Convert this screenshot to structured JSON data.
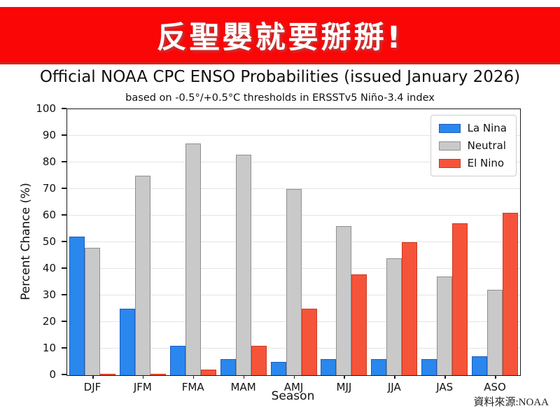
{
  "banner": {
    "text": "反聖嬰就要掰掰!",
    "bg_color": "#fb0606",
    "border_color": "#c92a1d",
    "text_color": "#ffffff"
  },
  "chart_data": {
    "type": "bar",
    "title": "Official NOAA CPC ENSO Probabilities (issued January 2026)",
    "subtitle": "based on -0.5°/+0.5°C thresholds in ERSSTv5 Niño-3.4 index",
    "xlabel": "Season",
    "ylabel": "Percent Chance (%)",
    "categories": [
      "DJF",
      "JFM",
      "FMA",
      "MAM",
      "AMJ",
      "MJJ",
      "JJA",
      "JAS",
      "ASO"
    ],
    "series": [
      {
        "name": "La Nina",
        "color": "#2a87ee",
        "edge_color": "#1d5cc0",
        "values": [
          52,
          25,
          11,
          6,
          5,
          6,
          6,
          6,
          7
        ]
      },
      {
        "name": "Neutral",
        "color": "#c9c9c9",
        "edge_color": "#909090",
        "values": [
          48,
          75,
          87,
          83,
          70,
          56,
          44,
          37,
          32
        ]
      },
      {
        "name": "El Nino",
        "color": "#f5543a",
        "edge_color": "#cc3a22",
        "values": [
          0,
          0,
          2,
          11,
          25,
          38,
          50,
          57,
          61
        ]
      }
    ],
    "ylim": [
      0,
      100
    ],
    "ytick_step": 10,
    "grid": true,
    "legend_position": "upper right"
  },
  "source": {
    "text": "資料來源:NOAA"
  }
}
